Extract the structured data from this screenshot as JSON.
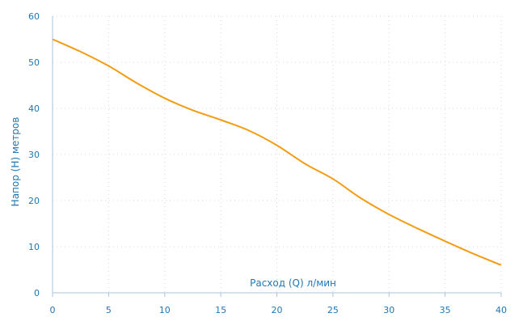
{
  "chart_data": {
    "type": "line",
    "xlabel": "Расход (Q) л/мин",
    "ylabel": "Напор (H) метров",
    "xlim": [
      0,
      40
    ],
    "ylim": [
      0,
      60
    ],
    "x_ticks": [
      0,
      5,
      10,
      15,
      20,
      25,
      30,
      35,
      40
    ],
    "y_ticks": [
      0,
      10,
      20,
      30,
      40,
      50,
      60
    ],
    "grid": true,
    "line_color": "#f39c12",
    "text_color": "#1f77b4",
    "series": [
      {
        "x": [
          0,
          2.5,
          5,
          7.5,
          10,
          12.5,
          15,
          17.5,
          20,
          22.5,
          25,
          27.5,
          30,
          32.5,
          35,
          37.5,
          40
        ],
        "values": [
          55,
          52.3,
          49.2,
          45.5,
          42.2,
          39.6,
          37.5,
          35.2,
          32,
          28,
          24.7,
          20.5,
          17,
          14,
          11.2,
          8.5,
          6
        ]
      }
    ]
  }
}
